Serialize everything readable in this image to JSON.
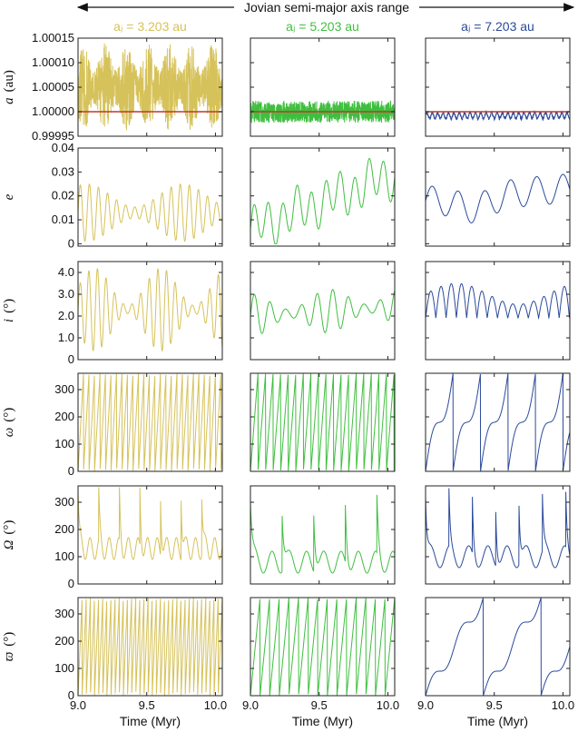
{
  "chart_data": {
    "type": "line",
    "title": "Jovian semi-major axis range",
    "columns": [
      {
        "name": "col-1",
        "title": "aⱼ = 3.203 au",
        "color": "#d6c25a"
      },
      {
        "name": "col-2",
        "title": "aⱼ = 5.203 au",
        "color": "#3fbf3f"
      },
      {
        "name": "col-3",
        "title": "aⱼ = 7.203 au",
        "color": "#2b4a9a"
      }
    ],
    "xlabel": "Time (Myr)",
    "xlim": [
      9.0,
      10.05
    ],
    "xticks": [
      9.0,
      9.5,
      10.0
    ],
    "xtick_labels": [
      "9.0",
      "9.5",
      "10.0"
    ],
    "rows": [
      {
        "key": "a",
        "symbol": "a",
        "unit": "(au)",
        "ylim": [
          0.99995,
          1.00015
        ],
        "yticks": [
          0.99995,
          1.0,
          1.00005,
          1.0001,
          1.00015
        ],
        "ytick_labels": [
          "0.99995",
          "1.00000",
          "1.00005",
          "1.00010",
          "1.00015"
        ],
        "reference_line": {
          "value": 1.0,
          "color": "#c0392b"
        }
      },
      {
        "key": "e",
        "symbol": "e",
        "unit": "",
        "ylim": [
          -0.001,
          0.04
        ],
        "yticks": [
          0,
          0.01,
          0.02,
          0.03,
          0.04
        ],
        "ytick_labels": [
          "0",
          "0.01",
          "0.02",
          "0.03",
          "0.04"
        ]
      },
      {
        "key": "i",
        "symbol": "i",
        "unit": "(°)",
        "ylim": [
          0,
          4.5
        ],
        "yticks": [
          0,
          1,
          2,
          3,
          4
        ],
        "ytick_labels": [
          "0",
          "1.0",
          "2.0",
          "3.0",
          "4.0"
        ]
      },
      {
        "key": "omega",
        "symbol": "ω",
        "unit": "(°)",
        "ylim": [
          0,
          360
        ],
        "yticks": [
          0,
          100,
          200,
          300
        ],
        "ytick_labels": [
          "0",
          "100",
          "200",
          "300"
        ]
      },
      {
        "key": "Omega",
        "symbol": "Ω",
        "unit": "(°)",
        "ylim": [
          0,
          360
        ],
        "yticks": [
          0,
          100,
          200,
          300
        ],
        "ytick_labels": [
          "0",
          "100",
          "200",
          "300"
        ]
      },
      {
        "key": "varpi",
        "symbol": "ϖ",
        "unit": "(°)",
        "ylim": [
          0,
          360
        ],
        "yticks": [
          0,
          100,
          200,
          300
        ],
        "ytick_labels": [
          "0",
          "100",
          "200",
          "300"
        ]
      }
    ],
    "series_summary": {
      "a": [
        {
          "range": [
            0.99995,
            1.00015
          ],
          "mean": 1.00005
        },
        {
          "range": [
            0.99998,
            1.00003
          ],
          "mean": 1.0
        },
        {
          "range": [
            0.99997,
            1.00001
          ],
          "mean": 0.99999
        }
      ],
      "e": [
        {
          "range": [
            0.0,
            0.028
          ]
        },
        {
          "range": [
            0.0,
            0.04
          ]
        },
        {
          "range": [
            0.005,
            0.031
          ]
        }
      ],
      "i": [
        {
          "range": [
            0.2,
            4.4
          ]
        },
        {
          "range": [
            0.6,
            3.5
          ]
        },
        {
          "range": [
            0.5,
            4.1
          ]
        }
      ],
      "omega": [
        {
          "period_myr": 0.04
        },
        {
          "period_myr": 0.055
        },
        {
          "period_myr": 0.2
        }
      ],
      "Omega": [
        {
          "baseline": 130,
          "spikes": 7
        },
        {
          "baseline": 80,
          "spikes": 4
        },
        {
          "baseline": 100,
          "spikes": 6
        }
      ],
      "varpi": [
        {
          "period_myr": 0.03
        },
        {
          "period_myr": 0.07
        },
        {
          "period_myr": 0.42
        }
      ]
    },
    "grid": false,
    "legend": "none"
  }
}
